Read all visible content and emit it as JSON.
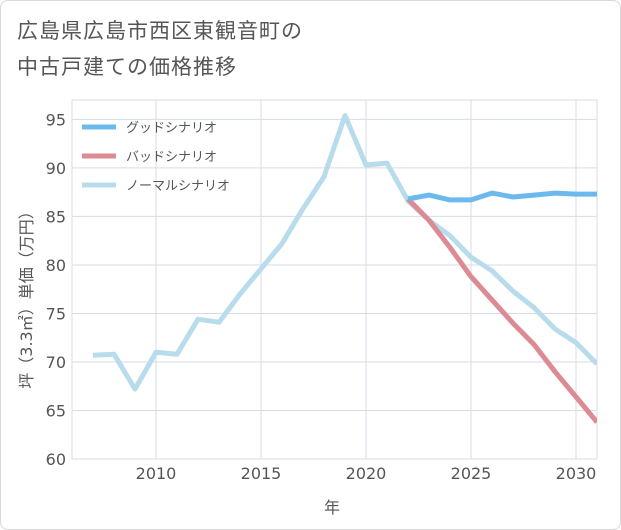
{
  "title_lines": [
    "広島県広島市西区東観音町の",
    "中古戸建ての価格推移"
  ],
  "chart_data": {
    "type": "line",
    "xlabel": "年",
    "ylabel": "坪（3.3㎡）単価（万円）",
    "xlim": [
      2006,
      2031
    ],
    "ylim": [
      60,
      97
    ],
    "xticks": [
      2010,
      2015,
      2020,
      2025,
      2030
    ],
    "yticks": [
      60,
      65,
      70,
      75,
      80,
      85,
      90,
      95
    ],
    "grid": true,
    "legend_position": "top-left",
    "series": [
      {
        "name": "グッドシナリオ",
        "color": "#6cb9ee",
        "x": [
          2022,
          2023,
          2024,
          2025,
          2026,
          2027,
          2028,
          2029,
          2030,
          2031
        ],
        "y": [
          86.8,
          87.2,
          86.7,
          86.7,
          87.4,
          87.0,
          87.2,
          87.4,
          87.3,
          87.3
        ]
      },
      {
        "name": "バッドシナリオ",
        "color": "#dc8a93",
        "x": [
          2022,
          2023,
          2024,
          2025,
          2026,
          2027,
          2028,
          2029,
          2030,
          2031
        ],
        "y": [
          86.8,
          84.6,
          81.8,
          78.8,
          76.4,
          74.0,
          71.8,
          69.0,
          66.4,
          63.8
        ]
      },
      {
        "name": "ノーマルシナリオ",
        "color": "#b9dcec",
        "x": [
          2007,
          2008,
          2009,
          2010,
          2011,
          2012,
          2013,
          2014,
          2015,
          2016,
          2017,
          2018,
          2019,
          2020,
          2021,
          2022,
          2023,
          2024,
          2025,
          2026,
          2027,
          2028,
          2029,
          2030,
          2031
        ],
        "y": [
          70.7,
          70.8,
          67.2,
          71.0,
          70.8,
          74.4,
          74.1,
          77.0,
          79.6,
          82.2,
          85.8,
          89.1,
          95.4,
          90.3,
          90.5,
          86.6,
          84.6,
          83.0,
          80.8,
          79.4,
          77.3,
          75.6,
          73.4,
          72.0,
          69.8
        ]
      }
    ]
  }
}
